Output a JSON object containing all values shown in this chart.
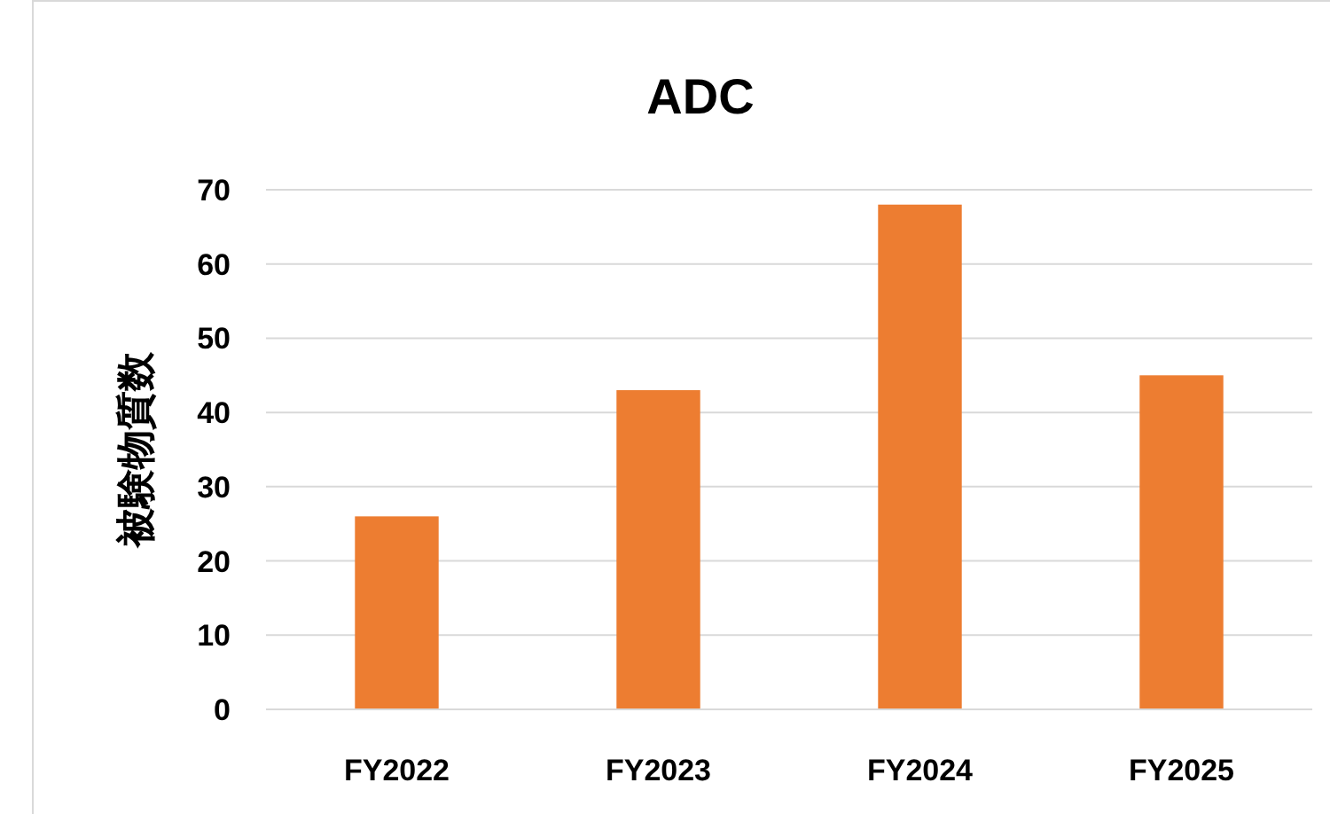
{
  "chart_data": {
    "type": "bar",
    "title": "ADC",
    "ylabel": "被験物質数",
    "categories": [
      "FY2022",
      "FY2023",
      "FY2024",
      "FY2025"
    ],
    "values": [
      26,
      43,
      68,
      45
    ],
    "color": "#ed7d31",
    "ylim": [
      0,
      70
    ],
    "yticks": [
      0,
      10,
      20,
      30,
      40,
      50,
      60,
      70
    ],
    "grid": "y"
  }
}
